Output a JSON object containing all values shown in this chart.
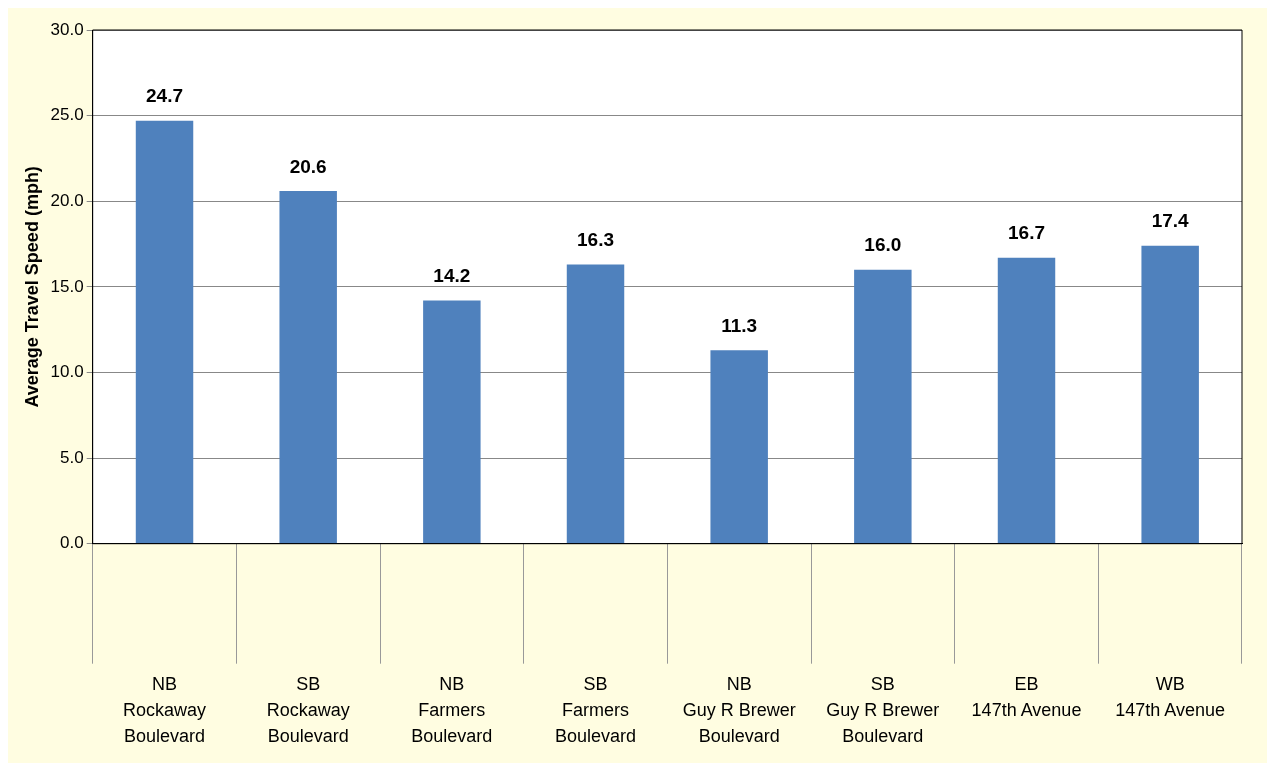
{
  "chart_data": {
    "type": "bar",
    "ylabel": "Average Travel Speed (mph)",
    "categories": [
      "NB\nRockaway\nBoulevard",
      "SB\nRockaway\nBoulevard",
      "NB\nFarmers\nBoulevard",
      "SB\nFarmers\nBoulevard",
      "NB\nGuy R Brewer\nBoulevard",
      "SB\nGuy R Brewer\nBoulevard",
      "EB\n147th Avenue",
      "WB\n147th Avenue"
    ],
    "values": [
      24.7,
      20.6,
      14.2,
      16.3,
      11.3,
      16.0,
      16.7,
      17.4
    ],
    "color": "#4f81bd",
    "ylim": [
      0,
      30
    ],
    "yticks": [
      {
        "value": 0,
        "label": "0.0"
      },
      {
        "value": 5,
        "label": "5.0"
      },
      {
        "value": 10,
        "label": "10.0"
      },
      {
        "value": 15,
        "label": "15.0"
      },
      {
        "value": 20,
        "label": "20.0"
      },
      {
        "value": 25,
        "label": "25.0"
      },
      {
        "value": 30,
        "label": "30.0"
      }
    ],
    "value_labels": [
      "24.7",
      "20.6",
      "14.2",
      "16.3",
      "11.3",
      "16.0",
      "16.7",
      "17.4"
    ],
    "grid": "y",
    "legend": false
  }
}
